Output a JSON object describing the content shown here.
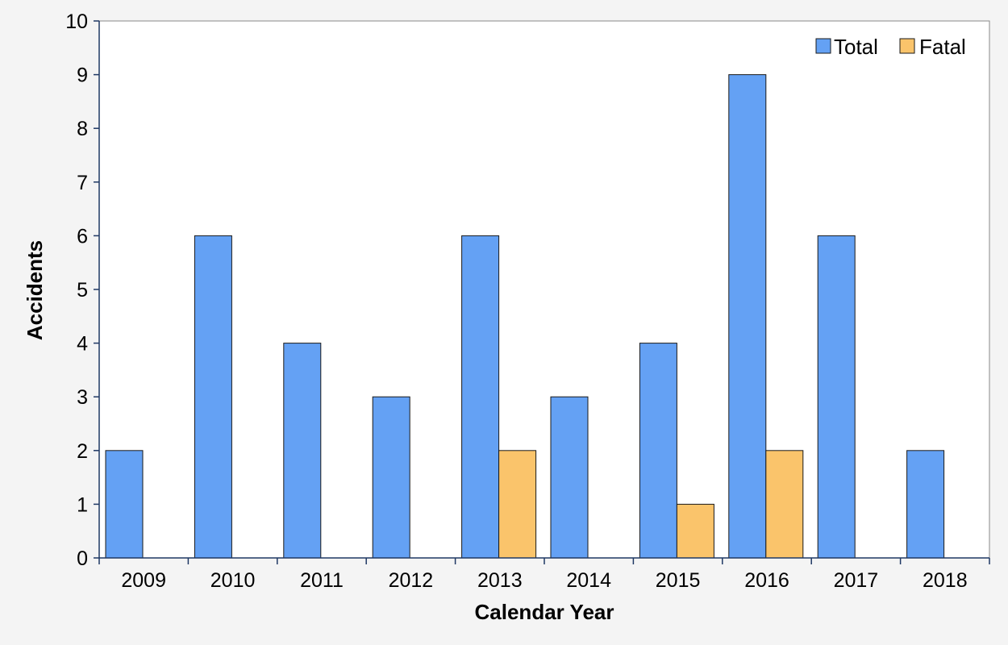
{
  "chart_data": {
    "type": "bar",
    "title": "",
    "xlabel": "Calendar Year",
    "ylabel": "Accidents",
    "categories": [
      "2009",
      "2010",
      "2011",
      "2012",
      "2013",
      "2014",
      "2015",
      "2016",
      "2017",
      "2018"
    ],
    "series": [
      {
        "name": "Total",
        "color": "#64a1f4",
        "values": [
          2,
          6,
          4,
          3,
          6,
          3,
          4,
          9,
          6,
          2
        ]
      },
      {
        "name": "Fatal",
        "color": "#fac46b",
        "values": [
          0,
          0,
          0,
          0,
          2,
          0,
          1,
          2,
          0,
          0
        ]
      }
    ],
    "ylim": [
      0,
      10
    ],
    "yticks": [
      "0",
      "1",
      "2",
      "3",
      "4",
      "5",
      "6",
      "7",
      "8",
      "9",
      "10"
    ],
    "grid": false,
    "legend_position": "top-right",
    "colors": {
      "background": "#f4f4f4",
      "plot_area": "#ffffff",
      "axis": "#1f3864",
      "bar_outline": "#1a1a1a"
    }
  }
}
